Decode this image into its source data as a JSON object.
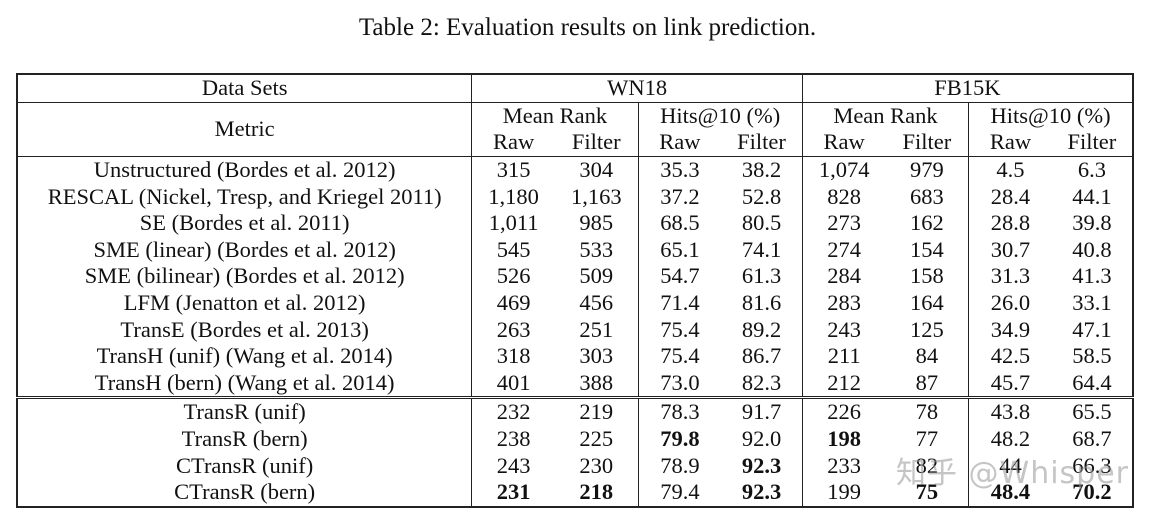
{
  "caption": "Table 2: Evaluation results on link prediction.",
  "header": {
    "data_sets": "Data Sets",
    "metric": "Metric",
    "wn18": "WN18",
    "fb15k": "FB15K",
    "mean_rank": "Mean Rank",
    "hits": "Hits@10 (%)",
    "raw": "Raw",
    "filter": "Filter"
  },
  "rows_group1": [
    {
      "method": "Unstructured (Bordes et al. 2012)",
      "v": [
        "315",
        "304",
        "35.3",
        "38.2",
        "1,074",
        "979",
        "4.5",
        "6.3"
      ]
    },
    {
      "method": "RESCAL (Nickel, Tresp, and Kriegel 2011)",
      "v": [
        "1,180",
        "1,163",
        "37.2",
        "52.8",
        "828",
        "683",
        "28.4",
        "44.1"
      ]
    },
    {
      "method": "SE (Bordes et al. 2011)",
      "v": [
        "1,011",
        "985",
        "68.5",
        "80.5",
        "273",
        "162",
        "28.8",
        "39.8"
      ]
    },
    {
      "method": "SME (linear) (Bordes et al. 2012)",
      "v": [
        "545",
        "533",
        "65.1",
        "74.1",
        "274",
        "154",
        "30.7",
        "40.8"
      ]
    },
    {
      "method": "SME (bilinear) (Bordes et al. 2012)",
      "v": [
        "526",
        "509",
        "54.7",
        "61.3",
        "284",
        "158",
        "31.3",
        "41.3"
      ]
    },
    {
      "method": "LFM (Jenatton et al. 2012)",
      "v": [
        "469",
        "456",
        "71.4",
        "81.6",
        "283",
        "164",
        "26.0",
        "33.1"
      ]
    },
    {
      "method": "TransE (Bordes et al. 2013)",
      "v": [
        "263",
        "251",
        "75.4",
        "89.2",
        "243",
        "125",
        "34.9",
        "47.1"
      ]
    },
    {
      "method": "TransH (unif) (Wang et al. 2014)",
      "v": [
        "318",
        "303",
        "75.4",
        "86.7",
        "211",
        "84",
        "42.5",
        "58.5"
      ]
    },
    {
      "method": "TransH (bern) (Wang et al. 2014)",
      "v": [
        "401",
        "388",
        "73.0",
        "82.3",
        "212",
        "87",
        "45.7",
        "64.4"
      ]
    }
  ],
  "rows_group2": [
    {
      "method": "TransR (unif)",
      "v": [
        "232",
        "219",
        "78.3",
        "91.7",
        "226",
        "78",
        "43.8",
        "65.5"
      ],
      "bold": []
    },
    {
      "method": "TransR (bern)",
      "v": [
        "238",
        "225",
        "79.8",
        "92.0",
        "198",
        "77",
        "48.2",
        "68.7"
      ],
      "bold": [
        2,
        4
      ]
    },
    {
      "method": "CTransR (unif)",
      "v": [
        "243",
        "230",
        "78.9",
        "92.3",
        "233",
        "82",
        "44",
        "66.3"
      ],
      "bold": [
        3
      ]
    },
    {
      "method": "CTransR (bern)",
      "v": [
        "231",
        "218",
        "79.4",
        "92.3",
        "199",
        "75",
        "48.4",
        "70.2"
      ],
      "bold": [
        0,
        1,
        3,
        5,
        6,
        7
      ]
    }
  ],
  "watermark": "知乎 @Whisper"
}
